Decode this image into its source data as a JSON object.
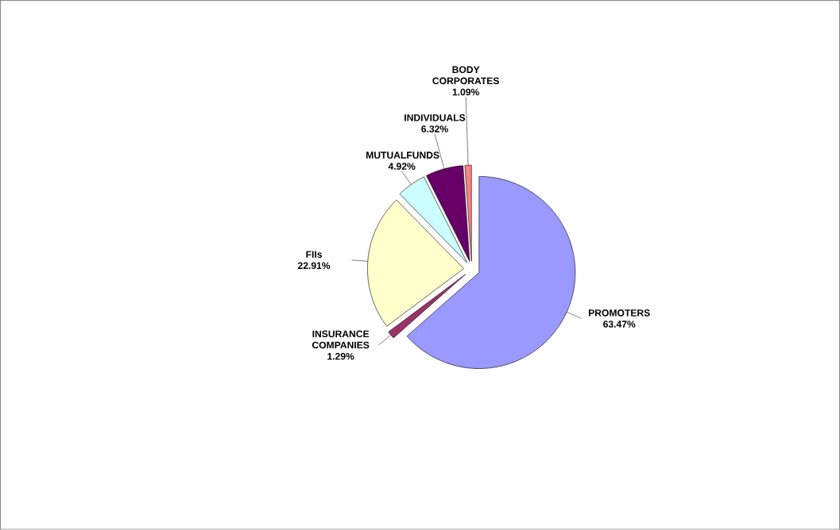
{
  "chart_data": {
    "type": "pie",
    "categories": [
      "PROMOTERS",
      "INSURANCE COMPANIES",
      "FIIs",
      "MUTUALFUNDS",
      "INDIVIDUALS",
      "BODY CORPORATES"
    ],
    "values": [
      63.47,
      1.29,
      22.91,
      4.92,
      6.32,
      1.09
    ],
    "value_labels": [
      "63.47%",
      "1.29%",
      "22.91%",
      "4.92%",
      "6.32%",
      "1.09%"
    ],
    "colors": [
      "#9999ff",
      "#993366",
      "#ffffcc",
      "#ccffff",
      "#660066",
      "#ff8080"
    ]
  }
}
